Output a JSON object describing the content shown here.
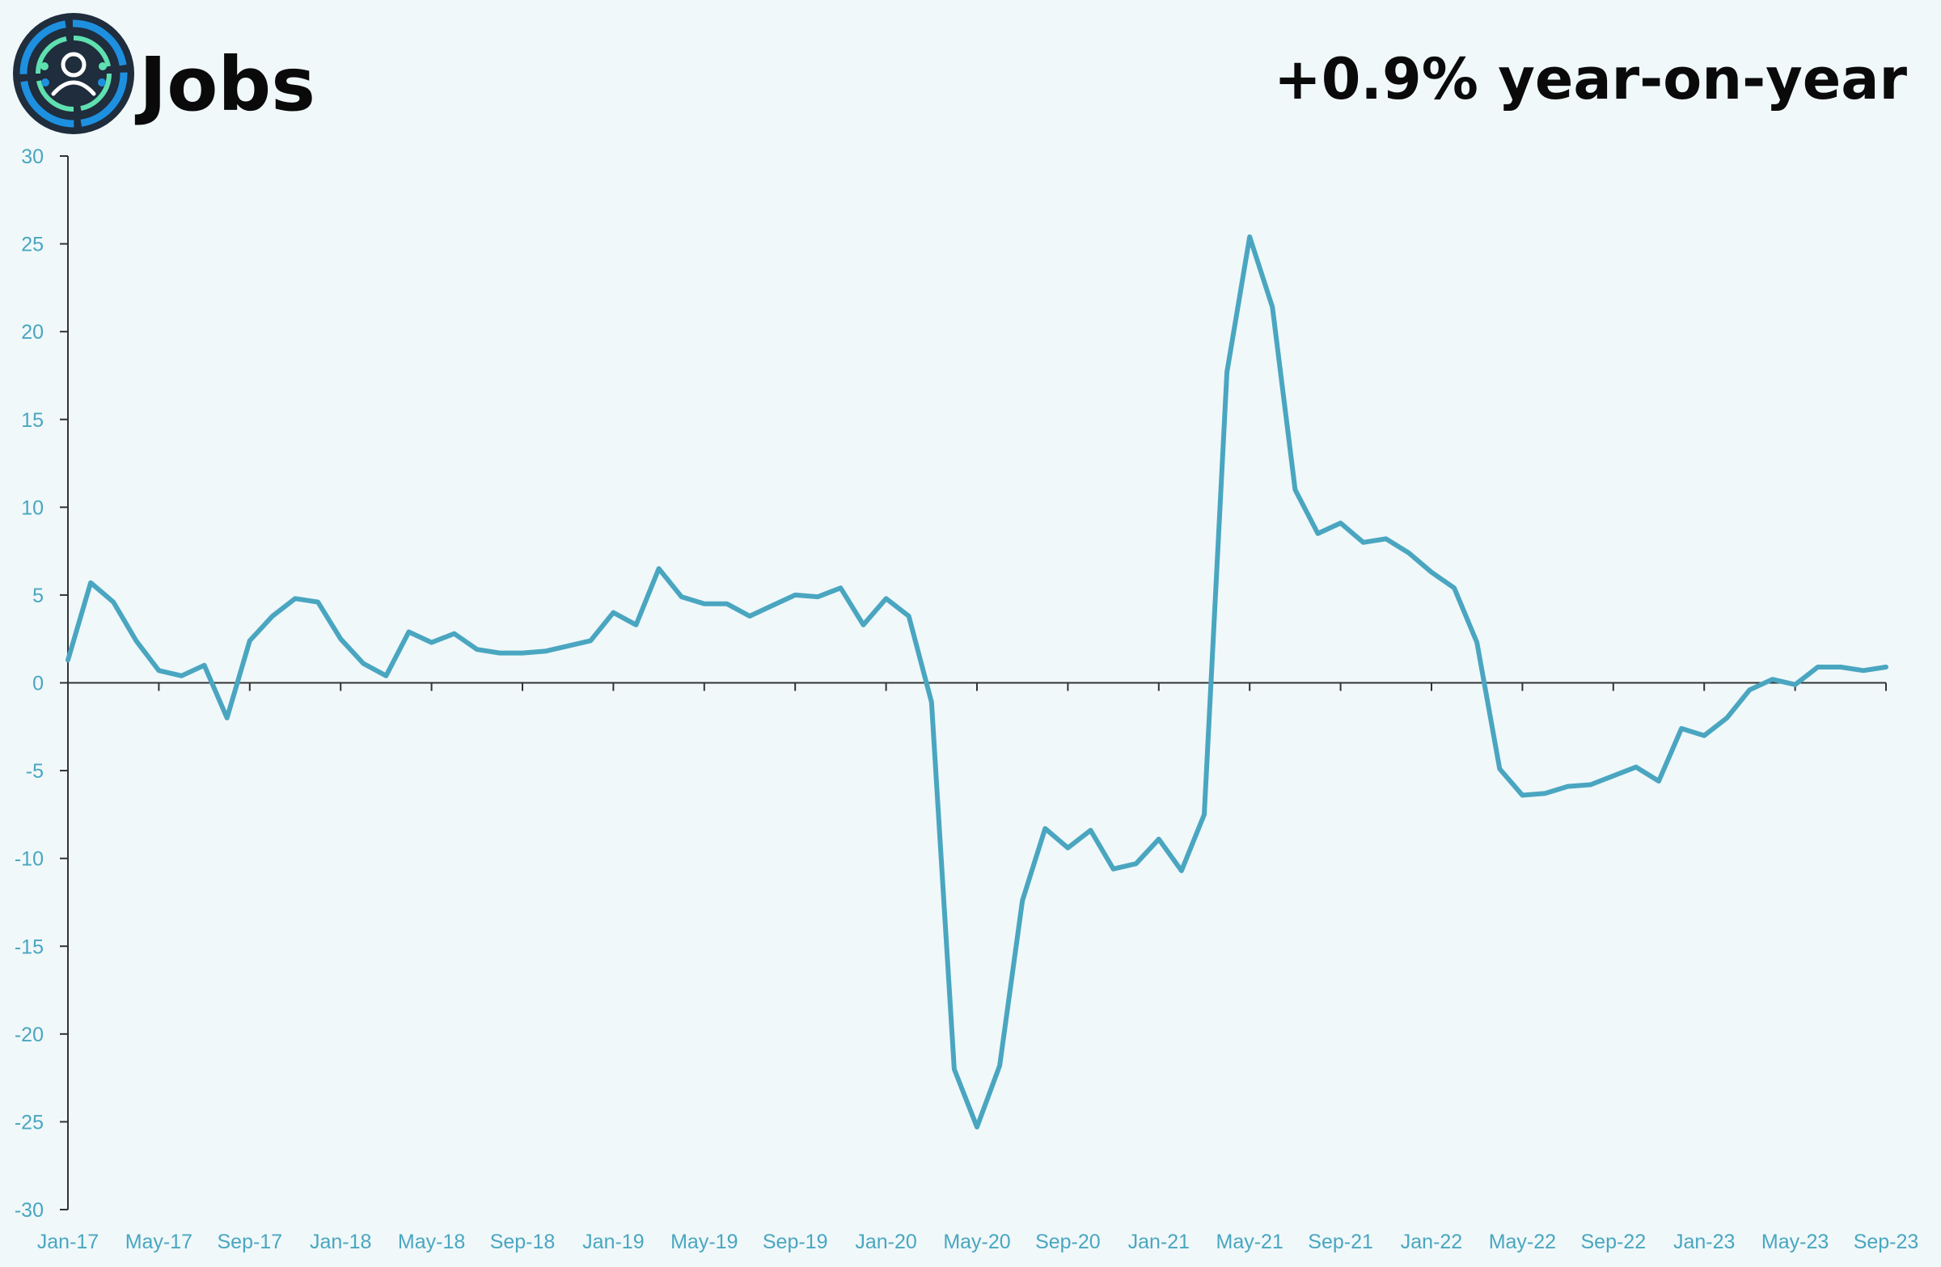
{
  "header": {
    "title": "Jobs",
    "headline": "+0.9% year-on-year",
    "logo_icon": "people-network-icon"
  },
  "colors": {
    "background": "#f0f8fa",
    "line": "#4aa6c0",
    "tick_label": "#4aa6c0",
    "axis": "#333333",
    "logo_bg": "#1f2d3d",
    "logo_blue": "#1e90e0",
    "logo_green": "#5fe0b0"
  },
  "chart_data": {
    "type": "line",
    "title": "",
    "xlabel": "",
    "ylabel": "",
    "ylim": [
      -30,
      30
    ],
    "yticks": [
      30,
      25,
      20,
      15,
      10,
      5,
      0,
      -5,
      -10,
      -15,
      -20,
      -25,
      -30
    ],
    "grid": false,
    "legend": "none",
    "xtick_labels": [
      "Jan-17",
      "May-17",
      "Sep-17",
      "Jan-18",
      "May-18",
      "Sep-18",
      "Jan-19",
      "May-19",
      "Sep-19",
      "Jan-20",
      "May-20",
      "Sep-20",
      "Jan-21",
      "May-21",
      "Sep-21",
      "Jan-22",
      "May-22",
      "Sep-22",
      "Jan-23",
      "May-23",
      "Sep-23"
    ],
    "x": [
      "Jan-17",
      "Feb-17",
      "Mar-17",
      "Apr-17",
      "May-17",
      "Jun-17",
      "Jul-17",
      "Aug-17",
      "Sep-17",
      "Oct-17",
      "Nov-17",
      "Dec-17",
      "Jan-18",
      "Feb-18",
      "Mar-18",
      "Apr-18",
      "May-18",
      "Jun-18",
      "Jul-18",
      "Aug-18",
      "Sep-18",
      "Oct-18",
      "Nov-18",
      "Dec-18",
      "Jan-19",
      "Feb-19",
      "Mar-19",
      "Apr-19",
      "May-19",
      "Jun-19",
      "Jul-19",
      "Aug-19",
      "Sep-19",
      "Oct-19",
      "Nov-19",
      "Dec-19",
      "Jan-20",
      "Feb-20",
      "Mar-20",
      "Apr-20",
      "May-20",
      "Jun-20",
      "Jul-20",
      "Aug-20",
      "Sep-20",
      "Oct-20",
      "Nov-20",
      "Dec-20",
      "Jan-21",
      "Feb-21",
      "Mar-21",
      "Apr-21",
      "May-21",
      "Jun-21",
      "Jul-21",
      "Aug-21",
      "Sep-21",
      "Oct-21",
      "Nov-21",
      "Dec-21",
      "Jan-22",
      "Feb-22",
      "Mar-22",
      "Apr-22",
      "May-22",
      "Jun-22",
      "Jul-22",
      "Aug-22",
      "Sep-22",
      "Oct-22",
      "Nov-22",
      "Dec-22",
      "Jan-23",
      "Feb-23",
      "Mar-23",
      "Apr-23",
      "May-23",
      "Jun-23",
      "Jul-23",
      "Aug-23",
      "Sep-23"
    ],
    "series": [
      {
        "values": [
          1.3,
          5.7,
          4.6,
          2.4,
          0.7,
          0.4,
          1.0,
          -2.0,
          2.4,
          3.8,
          4.8,
          4.6,
          2.5,
          1.1,
          0.4,
          2.9,
          2.3,
          2.8,
          1.9,
          1.7,
          1.7,
          1.8,
          2.1,
          2.4,
          4.0,
          3.3,
          6.5,
          4.9,
          4.5,
          4.5,
          3.8,
          4.4,
          5.0,
          4.9,
          5.4,
          3.3,
          4.8,
          3.8,
          -1.1,
          -22.0,
          -25.3,
          -21.8,
          -12.4,
          -8.3,
          -9.4,
          -8.4,
          -10.6,
          -10.3,
          -8.9,
          -10.7,
          -7.5,
          17.7,
          25.4,
          21.4,
          11.0,
          8.5,
          9.1,
          8.0,
          8.2,
          7.4,
          6.3,
          5.4,
          2.3,
          -4.9,
          -6.4,
          -6.3,
          -5.9,
          -5.8,
          -5.3,
          -4.8,
          -5.6,
          -2.6,
          -3.0,
          -2.0,
          -0.4,
          0.2,
          -0.1,
          0.9,
          0.9,
          0.7,
          0.9
        ]
      }
    ]
  }
}
